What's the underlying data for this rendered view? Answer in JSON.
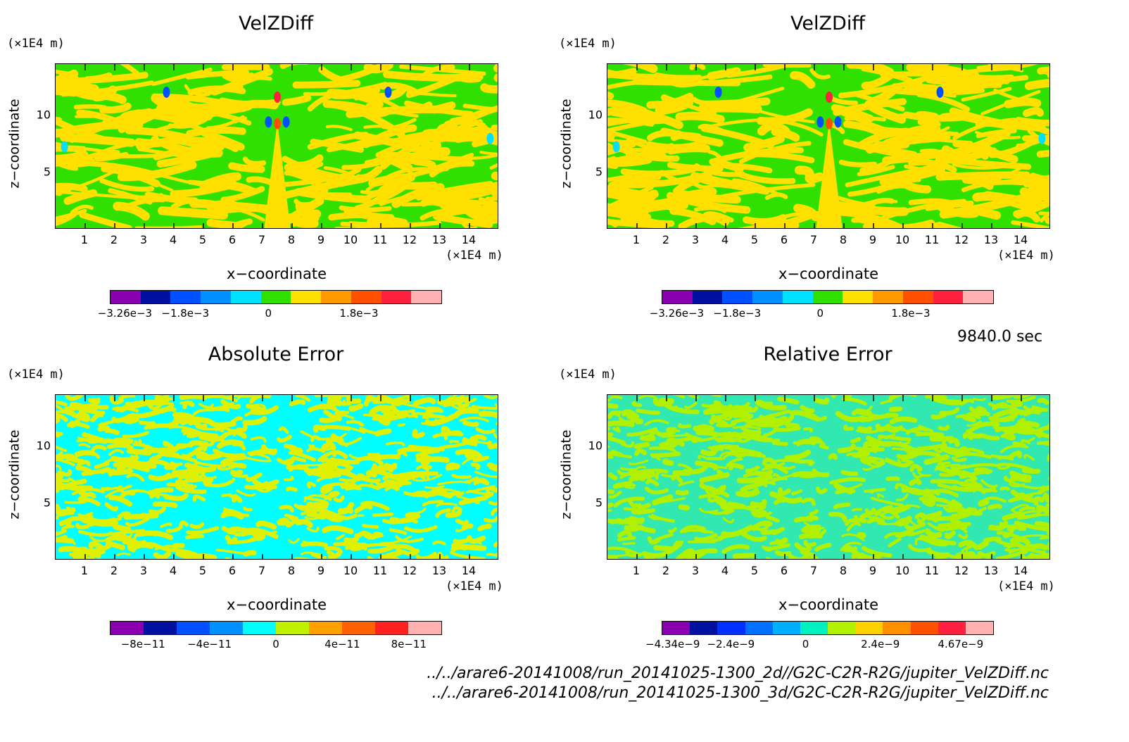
{
  "time_label": "9840.0 sec",
  "files": [
    "../../arare6-20141008/run_20141025-1300_2d//G2C-C2R-R2G/jupiter_VelZDiff.nc",
    "../../arare6-20141008/run_20141025-1300_3d/G2C-C2R-R2G/jupiter_VelZDiff.nc"
  ],
  "chart_data": [
    {
      "type": "heatmap",
      "title": "VelZDiff",
      "xlabel": "x−coordinate",
      "ylabel": "z−coordinate",
      "x_unit": "(×1E4 m)",
      "y_unit": "(×1E4 m)",
      "xlim": [
        0,
        15
      ],
      "ylim": [
        0,
        14.5
      ],
      "x_ticks": [
        "1",
        "2",
        "3",
        "4",
        "5",
        "6",
        "7",
        "8",
        "9",
        "10",
        "11",
        "12",
        "13",
        "14"
      ],
      "y_ticks": [
        "5",
        "10"
      ],
      "colorbar_colors": [
        "#8a00b0",
        "#0010a0",
        "#0050ff",
        "#0090ff",
        "#00e0ff",
        "#30e000",
        "#ffe000",
        "#ff9a00",
        "#ff5000",
        "#ff2040",
        "#ffb0b0"
      ],
      "colorbar_labels": [
        "−3.26e−3",
        "−1.8e−3",
        "0",
        "1.8e−3"
      ],
      "dominant_colors": [
        "#30e000",
        "#ffe000"
      ]
    },
    {
      "type": "heatmap",
      "title": "VelZDiff",
      "xlabel": "x−coordinate",
      "ylabel": "z−coordinate",
      "x_unit": "(×1E4 m)",
      "y_unit": "(×1E4 m)",
      "xlim": [
        0,
        15
      ],
      "ylim": [
        0,
        14.5
      ],
      "x_ticks": [
        "1",
        "2",
        "3",
        "4",
        "5",
        "6",
        "7",
        "8",
        "9",
        "10",
        "11",
        "12",
        "13",
        "14"
      ],
      "y_ticks": [
        "5",
        "10"
      ],
      "colorbar_colors": [
        "#8a00b0",
        "#0010a0",
        "#0050ff",
        "#0090ff",
        "#00e0ff",
        "#30e000",
        "#ffe000",
        "#ff9a00",
        "#ff5000",
        "#ff2040",
        "#ffb0b0"
      ],
      "colorbar_labels": [
        "−3.26e−3",
        "−1.8e−3",
        "0",
        "1.8e−3"
      ],
      "dominant_colors": [
        "#30e000",
        "#ffe000"
      ]
    },
    {
      "type": "heatmap",
      "title": "Absolute Error",
      "xlabel": "x−coordinate",
      "ylabel": "z−coordinate",
      "x_unit": "(×1E4 m)",
      "y_unit": "(×1E4 m)",
      "xlim": [
        0,
        15
      ],
      "ylim": [
        0,
        14.5
      ],
      "x_ticks": [
        "1",
        "2",
        "3",
        "4",
        "5",
        "6",
        "7",
        "8",
        "9",
        "10",
        "11",
        "12",
        "13",
        "14"
      ],
      "y_ticks": [
        "5",
        "10"
      ],
      "colorbar_colors": [
        "#8a00b0",
        "#0010a0",
        "#0050ff",
        "#0090ff",
        "#00ffff",
        "#c0f000",
        "#ffa000",
        "#ff6000",
        "#ff2020",
        "#ffb0b0"
      ],
      "colorbar_labels": [
        "−8e−11",
        "−4e−11",
        "0",
        "4e−11",
        "8e−11"
      ],
      "dominant_colors": [
        "#00ffff",
        "#e0f000"
      ]
    },
    {
      "type": "heatmap",
      "title": "Relative Error",
      "xlabel": "x−coordinate",
      "ylabel": "z−coordinate",
      "x_unit": "(×1E4 m)",
      "y_unit": "(×1E4 m)",
      "xlim": [
        0,
        15
      ],
      "ylim": [
        0,
        14.5
      ],
      "x_ticks": [
        "1",
        "2",
        "3",
        "4",
        "5",
        "6",
        "7",
        "8",
        "9",
        "10",
        "11",
        "12",
        "13",
        "14"
      ],
      "y_ticks": [
        "5",
        "10"
      ],
      "colorbar_colors": [
        "#8a00b0",
        "#0010a0",
        "#0030ff",
        "#0070ff",
        "#00b0ff",
        "#00f0c0",
        "#b0f000",
        "#ffd000",
        "#ff9000",
        "#ff5000",
        "#ff2040",
        "#ffb0b0"
      ],
      "colorbar_labels": [
        "−4.34e−9",
        "−2.4e−9",
        "0",
        "2.4e−9",
        "4.67e−9"
      ],
      "dominant_colors": [
        "#30e8b0",
        "#b0f000"
      ]
    }
  ]
}
